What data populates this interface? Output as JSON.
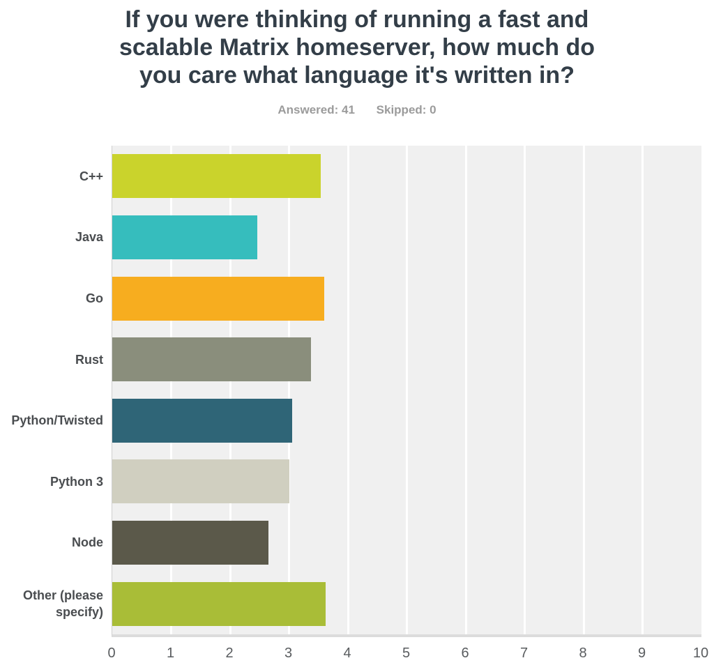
{
  "title_lines": [
    "If you were thinking of running a fast and",
    "scalable Matrix homeserver, how much do",
    "you care what language it's written in?"
  ],
  "stats": {
    "answered": "Answered: 41",
    "skipped": "Skipped: 0"
  },
  "colors": {
    "title_text": "#333e48",
    "stats_text": "#9b9b9b",
    "category_label_text": "#4a4d50",
    "tick_label_text": "#595c5f",
    "plot_background": "#f0f0f0",
    "gridline": "#ffffff",
    "axis_line": "#cfcfcf",
    "baseline_strip": "#dcdcdc"
  },
  "chart_data": {
    "type": "bar",
    "orientation": "horizontal",
    "title": "If you were thinking of running a fast and scalable Matrix homeserver, how much do you care what language it's written in?",
    "subtitle": "Answered: 41  Skipped: 0",
    "categories": [
      "C++",
      "Java",
      "Go",
      "Rust",
      "Python/Twisted",
      "Python 3",
      "Node",
      "Other (please specify)"
    ],
    "values": [
      3.54,
      2.46,
      3.6,
      3.37,
      3.05,
      3.0,
      2.65,
      3.62
    ],
    "bar_colors": [
      "#cad32c",
      "#36bdbd",
      "#f7ad1f",
      "#8a8e7c",
      "#2f6577",
      "#d0cfc0",
      "#5b594a",
      "#a9bd37"
    ],
    "xlabel": "",
    "ylabel": "",
    "xlim": [
      0,
      10
    ],
    "x_ticks": [
      0,
      1,
      2,
      3,
      4,
      5,
      6,
      7,
      8,
      9,
      10
    ],
    "grid": true,
    "legend": false
  }
}
